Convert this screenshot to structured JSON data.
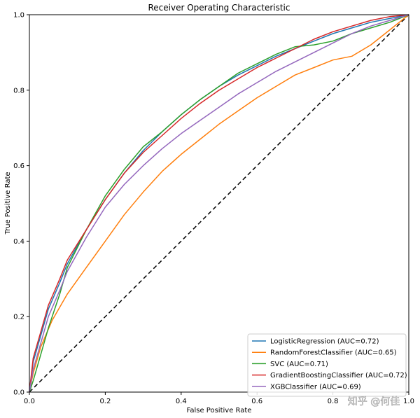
{
  "chart_data": {
    "type": "line",
    "title": "Receiver Operating Characteristic",
    "xlabel": "False Positive Rate",
    "ylabel": "True Positive Rate",
    "xlim": [
      0,
      1
    ],
    "ylim": [
      0,
      1
    ],
    "x_ticks": [
      "0.0",
      "0.2",
      "0.4",
      "0.6",
      "0.8",
      "1.0"
    ],
    "y_ticks": [
      "0.0",
      "0.2",
      "0.4",
      "0.6",
      "0.8",
      "1.0"
    ],
    "legend_position": "lower-right",
    "reference_line": {
      "style": "dashed",
      "color": "#000000",
      "x": [
        0,
        1
      ],
      "y": [
        0,
        1
      ]
    },
    "series": [
      {
        "name": "LogisticRegression (AUC=0.72)",
        "color": "#1f77b4",
        "x": [
          0,
          0.01,
          0.03,
          0.05,
          0.08,
          0.1,
          0.15,
          0.2,
          0.25,
          0.3,
          0.35,
          0.4,
          0.45,
          0.5,
          0.55,
          0.6,
          0.65,
          0.7,
          0.75,
          0.8,
          0.85,
          0.9,
          0.95,
          1.0
        ],
        "y": [
          0,
          0.08,
          0.15,
          0.22,
          0.29,
          0.34,
          0.43,
          0.51,
          0.58,
          0.64,
          0.69,
          0.735,
          0.775,
          0.81,
          0.84,
          0.865,
          0.89,
          0.91,
          0.93,
          0.95,
          0.965,
          0.98,
          0.99,
          1.0
        ]
      },
      {
        "name": "RandomForestClassifier (AUC=0.65)",
        "color": "#ff7f0e",
        "x": [
          0,
          0.01,
          0.03,
          0.06,
          0.1,
          0.15,
          0.2,
          0.25,
          0.3,
          0.35,
          0.4,
          0.45,
          0.5,
          0.55,
          0.6,
          0.65,
          0.7,
          0.75,
          0.8,
          0.85,
          0.9,
          0.95,
          1.0
        ],
        "y": [
          0,
          0.05,
          0.12,
          0.19,
          0.26,
          0.33,
          0.4,
          0.47,
          0.53,
          0.585,
          0.63,
          0.67,
          0.71,
          0.745,
          0.78,
          0.81,
          0.84,
          0.86,
          0.88,
          0.89,
          0.92,
          0.96,
          1.0
        ]
      },
      {
        "name": "SVC (AUC=0.71)",
        "color": "#2ca02c",
        "x": [
          0,
          0.01,
          0.03,
          0.05,
          0.08,
          0.1,
          0.15,
          0.2,
          0.25,
          0.3,
          0.35,
          0.4,
          0.45,
          0.5,
          0.55,
          0.6,
          0.65,
          0.7,
          0.75,
          0.8,
          0.85,
          0.9,
          0.95,
          1.0
        ],
        "y": [
          0,
          0.03,
          0.1,
          0.17,
          0.26,
          0.33,
          0.43,
          0.52,
          0.59,
          0.65,
          0.69,
          0.735,
          0.775,
          0.81,
          0.845,
          0.87,
          0.895,
          0.915,
          0.92,
          0.93,
          0.95,
          0.965,
          0.98,
          1.0
        ]
      },
      {
        "name": "GradientBoostingClassifier (AUC=0.72)",
        "color": "#d62728",
        "x": [
          0,
          0.01,
          0.03,
          0.05,
          0.08,
          0.1,
          0.15,
          0.2,
          0.25,
          0.3,
          0.35,
          0.4,
          0.45,
          0.5,
          0.55,
          0.6,
          0.65,
          0.7,
          0.75,
          0.8,
          0.85,
          0.9,
          0.95,
          1.0
        ],
        "y": [
          0,
          0.09,
          0.16,
          0.23,
          0.3,
          0.35,
          0.43,
          0.51,
          0.58,
          0.635,
          0.68,
          0.725,
          0.765,
          0.8,
          0.83,
          0.86,
          0.885,
          0.91,
          0.935,
          0.955,
          0.97,
          0.985,
          0.995,
          1.0
        ]
      },
      {
        "name": "XGBClassifier (AUC=0.69)",
        "color": "#9467bd",
        "x": [
          0,
          0.01,
          0.03,
          0.05,
          0.08,
          0.1,
          0.15,
          0.2,
          0.25,
          0.3,
          0.35,
          0.4,
          0.45,
          0.5,
          0.55,
          0.6,
          0.65,
          0.7,
          0.75,
          0.8,
          0.85,
          0.9,
          0.95,
          1.0
        ],
        "y": [
          0,
          0.06,
          0.13,
          0.2,
          0.27,
          0.32,
          0.41,
          0.49,
          0.55,
          0.6,
          0.645,
          0.685,
          0.72,
          0.755,
          0.79,
          0.82,
          0.85,
          0.875,
          0.9,
          0.925,
          0.95,
          0.97,
          0.985,
          1.0
        ]
      }
    ]
  },
  "watermark": "知乎 @何佳"
}
